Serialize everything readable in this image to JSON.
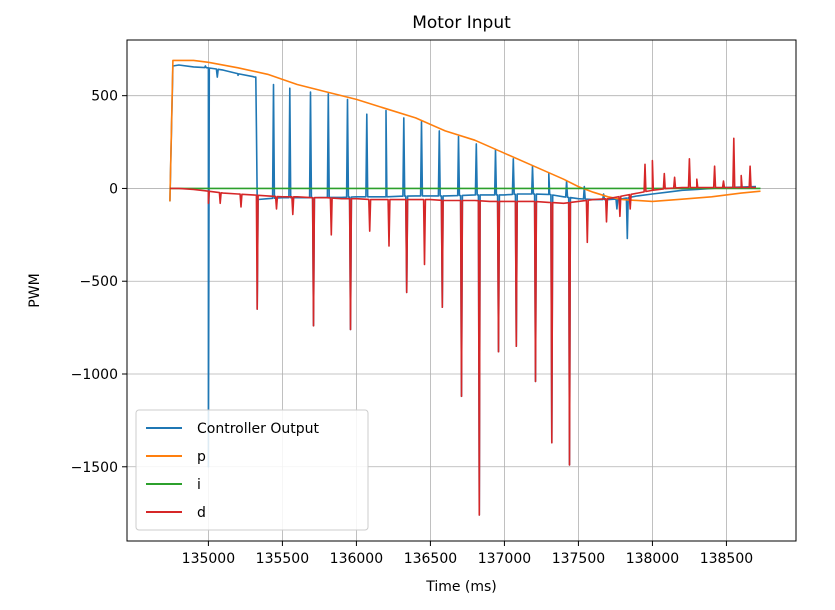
{
  "chart_data": {
    "type": "line",
    "title": "Motor Input",
    "xlabel": "Time (ms)",
    "ylabel": "PWM",
    "xlim": [
      134450,
      138970
    ],
    "ylim": [
      -1900,
      800
    ],
    "xticks": [
      135000,
      135500,
      136000,
      136500,
      137000,
      137500,
      138000,
      138500
    ],
    "yticks": [
      500,
      0,
      -500,
      -1000,
      -1500
    ],
    "ytick_labels": [
      "500",
      "0",
      "−500",
      "−1000",
      "−1500"
    ],
    "grid": true,
    "legend_position": "lower-left",
    "spike_times": [
      135000,
      135080,
      135220,
      135330,
      135460,
      135570,
      135710,
      135830,
      135960,
      136090,
      136220,
      136340,
      136460,
      136580,
      136710,
      136830,
      136960,
      137080,
      137210,
      137320,
      137440,
      137560,
      137690,
      137780,
      137850
    ],
    "series": [
      {
        "name": "Controller Output",
        "color": "#1f77b4",
        "x": [
          134740,
          134760,
          134800,
          134900,
          135000,
          135100,
          135200,
          135320,
          135330,
          135400,
          135500,
          135600,
          135700,
          135800,
          135900,
          136000,
          136100,
          136200,
          136300,
          136400,
          136500,
          136600,
          136700,
          136800,
          136900,
          137000,
          137100,
          137200,
          137300,
          137400,
          137500,
          137600,
          137700,
          137800,
          137900,
          138000,
          138100,
          138200,
          138300,
          138400,
          138500,
          138600,
          138700
        ],
        "y": [
          -70,
          660,
          665,
          655,
          650,
          638,
          618,
          600,
          -60,
          -55,
          -50,
          -50,
          -50,
          -48,
          -48,
          -45,
          -45,
          -45,
          -42,
          -40,
          -40,
          -40,
          -38,
          -35,
          -35,
          -35,
          -30,
          -30,
          -32,
          -45,
          -55,
          -60,
          -60,
          -55,
          -40,
          -30,
          -20,
          -10,
          -5,
          0,
          5,
          8,
          10
        ],
        "spikes": [
          -1500,
          0,
          0,
          -650,
          0,
          0,
          -740,
          0,
          -760,
          0,
          0,
          -560,
          0,
          -640,
          -1120,
          -1760,
          -880,
          -850,
          -1040,
          -1370,
          -1490,
          0,
          0,
          0,
          0
        ],
        "upper_spikes": [
          660,
          600,
          610,
          600,
          560,
          540,
          520,
          510,
          480,
          400,
          420,
          380,
          360,
          310,
          280,
          240,
          210,
          160,
          120,
          80,
          40,
          10,
          -30,
          -110,
          -270
        ]
      },
      {
        "name": "p",
        "color": "#ff7f0e",
        "x": [
          134740,
          134760,
          134900,
          135000,
          135200,
          135400,
          135600,
          135800,
          136000,
          136200,
          136400,
          136600,
          136800,
          137000,
          137200,
          137400,
          137500,
          137600,
          137700,
          137800,
          138000,
          138200,
          138400,
          138600,
          138730
        ],
        "y": [
          -70,
          690,
          690,
          680,
          650,
          615,
          560,
          520,
          480,
          430,
          380,
          310,
          260,
          190,
          120,
          50,
          10,
          -20,
          -45,
          -60,
          -70,
          -58,
          -45,
          -25,
          -15
        ]
      },
      {
        "name": "i",
        "color": "#2ca02c",
        "x": [
          134740,
          138730
        ],
        "y": [
          0,
          0
        ]
      },
      {
        "name": "d",
        "color": "#d62728",
        "x": [
          134740,
          134800,
          134900,
          135000,
          135100,
          135200,
          135300,
          135400,
          135500,
          135600,
          135700,
          135800,
          135900,
          136000,
          136100,
          136200,
          136300,
          136400,
          136500,
          136600,
          136700,
          136800,
          136900,
          137000,
          137100,
          137200,
          137300,
          137400,
          137500,
          137600,
          137700,
          137800,
          137900,
          138000,
          138100,
          138200,
          138300,
          138400,
          138500,
          138600,
          138700
        ],
        "y": [
          0,
          0,
          -5,
          -15,
          -25,
          -30,
          -35,
          -40,
          -45,
          -45,
          -50,
          -50,
          -55,
          -55,
          -60,
          -60,
          -60,
          -60,
          -60,
          -65,
          -65,
          -65,
          -70,
          -70,
          -70,
          -70,
          -75,
          -80,
          -70,
          -60,
          -55,
          -40,
          -25,
          -10,
          0,
          5,
          5,
          5,
          5,
          5,
          5
        ],
        "spikes": [
          -80,
          -80,
          -100,
          -650,
          -110,
          -140,
          -740,
          -250,
          -760,
          -230,
          -310,
          -560,
          -410,
          -640,
          -1120,
          -1760,
          -880,
          -850,
          -1040,
          -1370,
          -1490,
          -290,
          -180,
          -150,
          -110
        ],
        "positive_spikes_x": [
          137950,
          138000,
          138080,
          138150,
          138250,
          138300,
          138420,
          138480,
          138550,
          138600,
          138660
        ],
        "positive_spikes_y": [
          130,
          150,
          80,
          60,
          160,
          50,
          120,
          40,
          270,
          70,
          120
        ]
      }
    ]
  }
}
